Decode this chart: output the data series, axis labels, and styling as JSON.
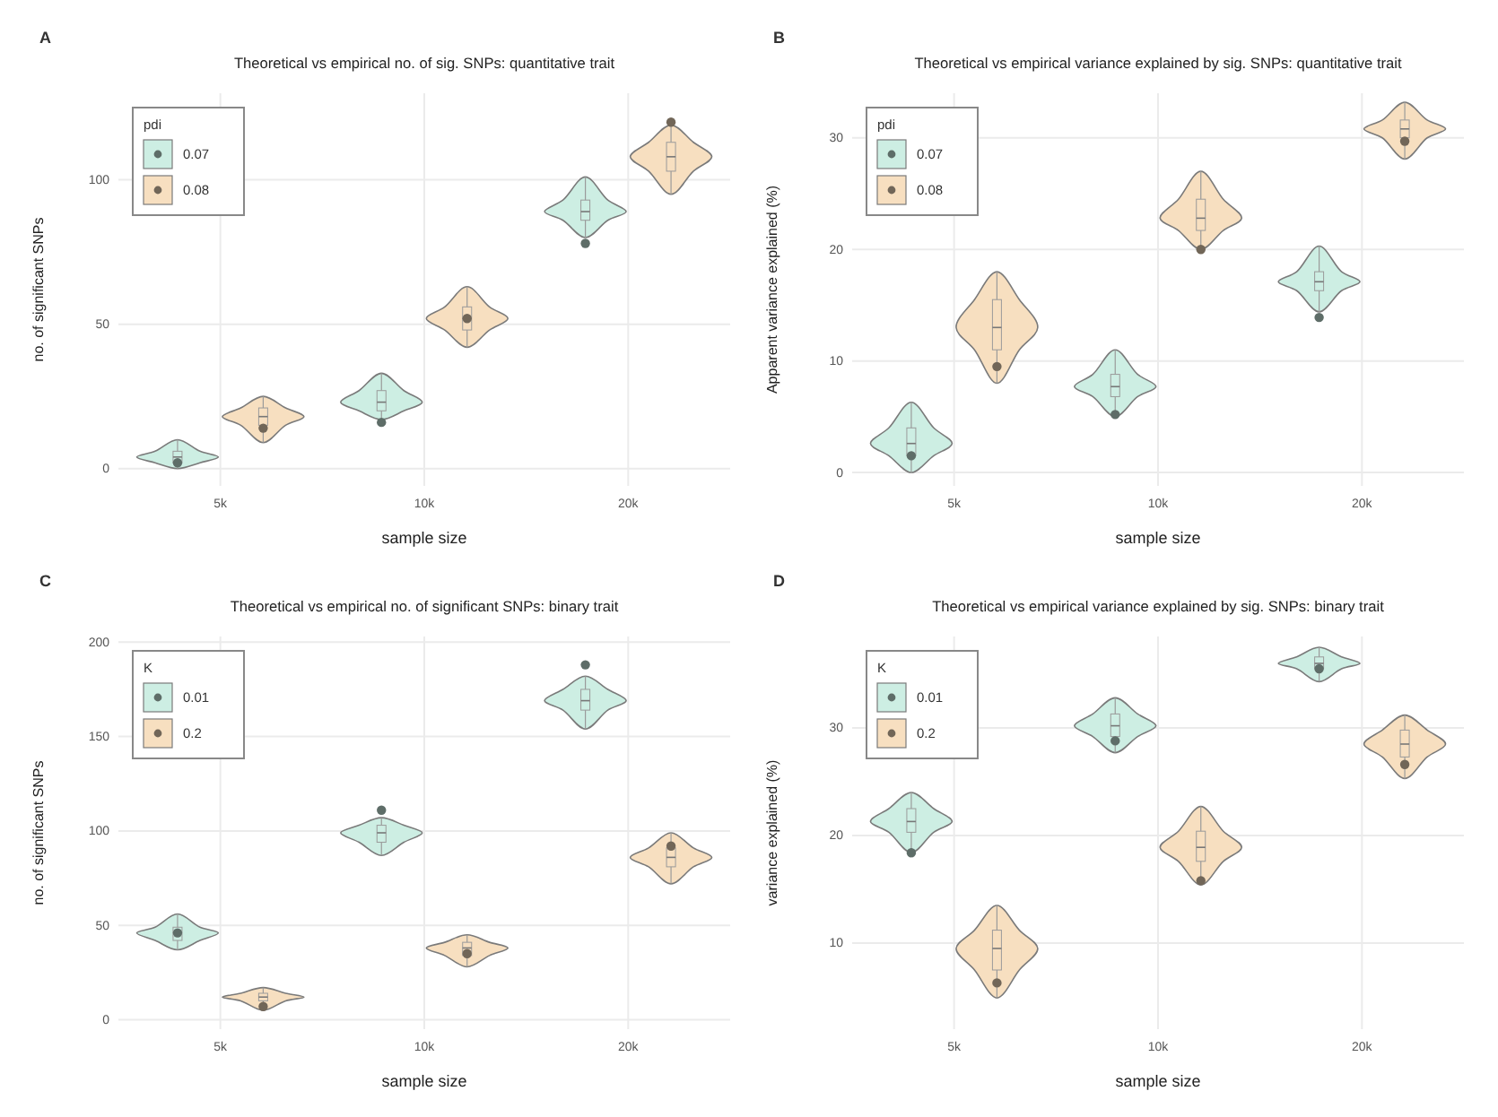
{
  "chart_data": [
    {
      "type": "box",
      "title": "Theoretical vs empirical no. of sig. SNPs: quantitative trait",
      "xlabel": "sample size",
      "ylabel": "no. of significant SNPs",
      "annotations": [
        "A"
      ],
      "categories": [
        "5k",
        "10k",
        "20k"
      ],
      "ylim": [
        -6,
        130
      ],
      "yticks": [
        0,
        50,
        100
      ],
      "grid": true,
      "legend": "top left",
      "legend_title": "pdi",
      "marker": "circle",
      "series": [
        {
          "name": "0.07",
          "color": "#cdeee3",
          "boxes": [
            {
              "low": 0,
              "q1": 2,
              "median": 4,
              "q3": 6,
              "high": 10,
              "mean": 2
            },
            {
              "low": 17,
              "q1": 20,
              "median": 23,
              "q3": 27,
              "high": 33,
              "mean": 16
            },
            {
              "low": 80,
              "q1": 86,
              "median": 89,
              "q3": 93,
              "high": 101,
              "mean": 78
            }
          ]
        },
        {
          "name": "0.08",
          "color": "#f7dfc0",
          "boxes": [
            {
              "low": 9,
              "q1": 15,
              "median": 18,
              "q3": 21,
              "high": 25,
              "mean": 14
            },
            {
              "low": 42,
              "q1": 48,
              "median": 52,
              "q3": 56,
              "high": 63,
              "mean": 52
            },
            {
              "low": 95,
              "q1": 103,
              "median": 108,
              "q3": 113,
              "high": 119,
              "mean": 120
            }
          ]
        }
      ]
    },
    {
      "type": "box",
      "title": "Theoretical vs empirical variance explained by sig. SNPs: quantitative trait",
      "xlabel": "sample size",
      "ylabel": "Apparent variance explained (%)",
      "annotations": [
        "B"
      ],
      "categories": [
        "5k",
        "10k",
        "20k"
      ],
      "ylim": [
        -1.2,
        34
      ],
      "yticks": [
        0,
        10,
        20,
        30
      ],
      "grid": true,
      "legend": "top left",
      "legend_title": "pdi",
      "marker": "circle",
      "series": [
        {
          "name": "0.07",
          "color": "#cdeee3",
          "boxes": [
            {
              "low": 0,
              "q1": 1.5,
              "median": 2.6,
              "q3": 4,
              "high": 6.3,
              "mean": 1.5
            },
            {
              "low": 5,
              "q1": 6.8,
              "median": 7.7,
              "q3": 8.8,
              "high": 11,
              "mean": 5.2
            },
            {
              "low": 14.4,
              "q1": 16.3,
              "median": 17.1,
              "q3": 18,
              "high": 20.3,
              "mean": 13.9
            }
          ]
        },
        {
          "name": "0.08",
          "color": "#f7dfc0",
          "boxes": [
            {
              "low": 8,
              "q1": 11,
              "median": 13,
              "q3": 15.5,
              "high": 18,
              "mean": 9.5
            },
            {
              "low": 20,
              "q1": 21.7,
              "median": 22.8,
              "q3": 24.5,
              "high": 27,
              "mean": 20
            },
            {
              "low": 28.1,
              "q1": 30,
              "median": 30.8,
              "q3": 31.6,
              "high": 33.2,
              "mean": 29.7
            }
          ]
        }
      ]
    },
    {
      "type": "box",
      "title": "Theoretical vs empirical no. of significant SNPs: binary trait",
      "xlabel": "sample size",
      "ylabel": "no. of significant SNPs",
      "annotations": [
        "C"
      ],
      "categories": [
        "5k",
        "10k",
        "20k"
      ],
      "ylim": [
        -5,
        203
      ],
      "yticks": [
        0,
        50,
        100,
        150,
        200
      ],
      "grid": true,
      "legend": "top left",
      "legend_title": "K",
      "marker": "circle",
      "series": [
        {
          "name": "0.01",
          "color": "#cdeee3",
          "boxes": [
            {
              "low": 37,
              "q1": 42,
              "median": 46,
              "q3": 49,
              "high": 56,
              "mean": 46
            },
            {
              "low": 87,
              "q1": 94,
              "median": 99,
              "q3": 103,
              "high": 107,
              "mean": 111
            },
            {
              "low": 154,
              "q1": 164,
              "median": 169,
              "q3": 175,
              "high": 182,
              "mean": 188
            }
          ]
        },
        {
          "name": "0.2",
          "color": "#f7dfc0",
          "boxes": [
            {
              "low": 5,
              "q1": 10,
              "median": 12,
              "q3": 14,
              "high": 17,
              "mean": 7
            },
            {
              "low": 28,
              "q1": 34,
              "median": 38,
              "q3": 41,
              "high": 45,
              "mean": 35
            },
            {
              "low": 72,
              "q1": 81,
              "median": 86,
              "q3": 91,
              "high": 99,
              "mean": 92
            }
          ]
        }
      ]
    },
    {
      "type": "box",
      "title": "Theoretical vs empirical variance explained by sig. SNPs: binary trait",
      "xlabel": "sample size",
      "ylabel": "variance explained (%)",
      "annotations": [
        "D"
      ],
      "categories": [
        "5k",
        "10k",
        "20k"
      ],
      "ylim": [
        2,
        38.5
      ],
      "yticks": [
        10,
        20,
        30
      ],
      "grid": true,
      "legend": "top left",
      "legend_title": "K",
      "marker": "circle",
      "series": [
        {
          "name": "0.01",
          "color": "#cdeee3",
          "boxes": [
            {
              "low": 18.4,
              "q1": 20.3,
              "median": 21.3,
              "q3": 22.5,
              "high": 24,
              "mean": 18.4
            },
            {
              "low": 27.7,
              "q1": 29.2,
              "median": 30.2,
              "q3": 31.3,
              "high": 32.8,
              "mean": 28.8
            },
            {
              "low": 34.3,
              "q1": 35.5,
              "median": 36,
              "q3": 36.6,
              "high": 37.5,
              "mean": 35.5
            }
          ]
        },
        {
          "name": "0.2",
          "color": "#f7dfc0",
          "boxes": [
            {
              "low": 4.9,
              "q1": 7.5,
              "median": 9.5,
              "q3": 11.2,
              "high": 13.5,
              "mean": 6.3
            },
            {
              "low": 15.4,
              "q1": 17.6,
              "median": 18.9,
              "q3": 20.4,
              "high": 22.7,
              "mean": 15.8
            },
            {
              "low": 25.3,
              "q1": 27.3,
              "median": 28.5,
              "q3": 29.8,
              "high": 31.2,
              "mean": 26.6
            }
          ]
        }
      ]
    }
  ]
}
